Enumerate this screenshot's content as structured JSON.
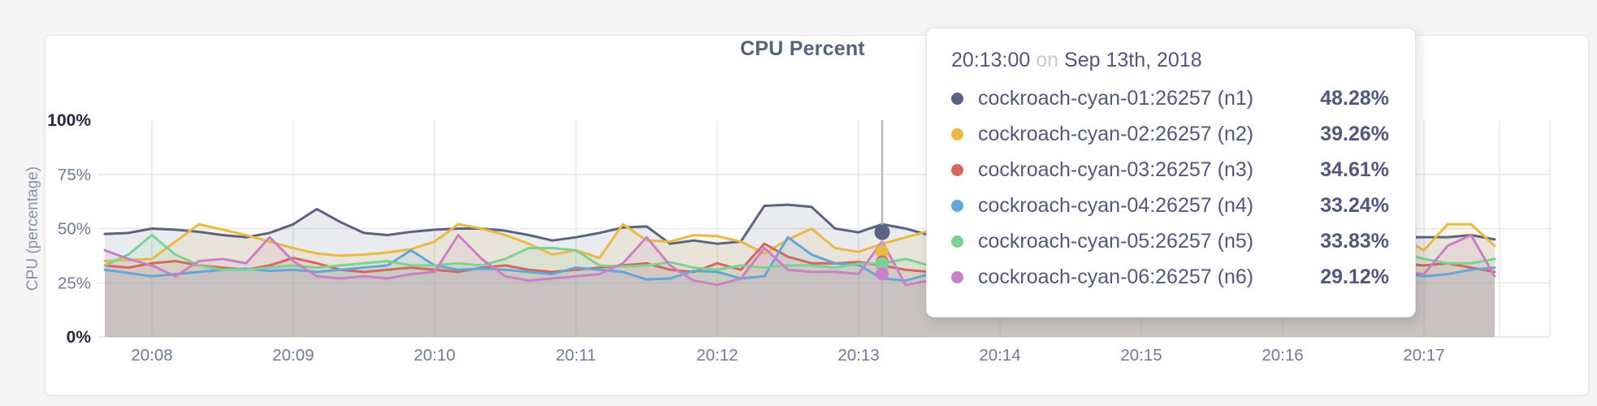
{
  "chart": {
    "title": "CPU Percent",
    "y_axis": {
      "label": "CPU (percentage)",
      "ticks": [
        {
          "label": "100%",
          "value": 100,
          "emphasis": true,
          "grid": false
        },
        {
          "label": "75%",
          "value": 75,
          "emphasis": false,
          "grid": true
        },
        {
          "label": "50%",
          "value": 50,
          "emphasis": false,
          "grid": true
        },
        {
          "label": "25%",
          "value": 25,
          "emphasis": false,
          "grid": true
        },
        {
          "label": "0%",
          "value": 0,
          "emphasis": true,
          "grid": false
        }
      ]
    },
    "x_axis": {
      "ticks": [
        "20:08",
        "20:09",
        "20:10",
        "20:11",
        "20:12",
        "20:13",
        "20:14",
        "20:15",
        "20:16",
        "20:17"
      ]
    }
  },
  "chart_data": {
    "type": "line",
    "title": "CPU Percent",
    "ylabel": "CPU (percentage)",
    "unit": "percent",
    "ylim": [
      0,
      100
    ],
    "grid": true,
    "x_start": "20:07:40",
    "x_end": "20:17:30",
    "x_step_seconds": 10,
    "series": [
      {
        "name": "cockroach-cyan-01:26257 (n1)",
        "color": "#5a6480",
        "values": [
          47.5,
          48,
          50,
          49.5,
          48.5,
          47,
          46,
          48,
          52,
          59,
          53,
          48,
          47,
          48.5,
          49.5,
          50,
          50,
          49,
          47,
          44.5,
          46,
          48,
          50.5,
          51,
          43,
          44.5,
          43,
          44,
          60.5,
          61,
          60,
          50,
          48.28,
          52,
          50,
          47,
          46,
          45,
          46,
          47,
          48,
          46,
          45,
          47,
          46,
          48,
          47,
          45,
          46,
          47,
          45,
          46,
          45,
          46,
          46.5,
          46,
          46,
          46,
          47,
          45
        ]
      },
      {
        "name": "cockroach-cyan-02:26257 (n2)",
        "color": "#eab943",
        "values": [
          35,
          35.5,
          36,
          44,
          52,
          49.5,
          47,
          44,
          41,
          38.5,
          37.5,
          38,
          39,
          40.5,
          44,
          52,
          50,
          47,
          43,
          38,
          40,
          36.5,
          52,
          44.5,
          44,
          47,
          46.5,
          44,
          38.5,
          45,
          50,
          41,
          39.26,
          43,
          46,
          49,
          47,
          44,
          42,
          45,
          48,
          46,
          43,
          41,
          44,
          47,
          49,
          46,
          43,
          40,
          42,
          44,
          46,
          44,
          47,
          46,
          40,
          52,
          52,
          42
        ]
      },
      {
        "name": "cockroach-cyan-03:26257 (n3)",
        "color": "#d4675f",
        "values": [
          33,
          32,
          34,
          35,
          33,
          32,
          31,
          33,
          36.5,
          34,
          31,
          30,
          31,
          32,
          31,
          30,
          32,
          33,
          31,
          30,
          31,
          32,
          33,
          34,
          31,
          30,
          34,
          31,
          43,
          37,
          34,
          34,
          34.61,
          33,
          31,
          30,
          32,
          34,
          36,
          31,
          30,
          32,
          33,
          31,
          30,
          31,
          32,
          33,
          31,
          30,
          32,
          31,
          33,
          32,
          31,
          34,
          33,
          34,
          32,
          30
        ]
      },
      {
        "name": "cockroach-cyan-04:26257 (n4)",
        "color": "#64a6d9",
        "values": [
          31,
          29.5,
          28,
          29,
          30,
          31,
          31.5,
          30.5,
          31,
          30,
          31,
          32,
          33,
          40,
          33,
          31,
          31.5,
          31,
          30,
          29,
          32,
          31,
          30,
          26.5,
          27,
          30.5,
          30,
          27,
          28,
          46,
          38,
          34,
          33.24,
          27,
          26,
          29,
          31,
          30,
          28,
          27,
          29,
          31,
          30,
          29,
          28,
          30,
          31,
          29,
          28,
          30,
          29,
          31,
          30,
          28,
          29,
          30,
          28,
          29,
          31,
          32
        ]
      },
      {
        "name": "cockroach-cyan-05:26257 (n5)",
        "color": "#7bd293",
        "values": [
          33,
          38,
          47,
          38,
          33,
          31,
          31,
          32,
          33,
          32,
          33,
          34,
          35,
          33,
          33,
          34,
          33,
          36,
          41,
          41,
          40,
          33,
          32.5,
          33,
          34.5,
          32,
          31,
          33,
          32,
          33,
          33,
          32,
          33.83,
          34,
          36,
          33,
          32,
          34,
          35,
          33,
          32,
          34,
          36,
          34,
          33,
          35,
          34,
          33,
          35,
          34,
          33,
          36,
          38,
          40,
          41,
          39,
          36,
          34,
          34,
          36
        ]
      },
      {
        "name": "cockroach-cyan-06:26257 (n6)",
        "color": "#ca80c5",
        "values": [
          40,
          36,
          33,
          28,
          35,
          36,
          34,
          46,
          35,
          28,
          27,
          28,
          27,
          29,
          30,
          47,
          36,
          28,
          26,
          27,
          28,
          29,
          34,
          46,
          33,
          26,
          24,
          27,
          41,
          31,
          30,
          30,
          29.12,
          44,
          24,
          26,
          28,
          25,
          27,
          29,
          26,
          28,
          30,
          27,
          25,
          28,
          30,
          26,
          28,
          27,
          29,
          26,
          28,
          30,
          28,
          30,
          29,
          42,
          47,
          28
        ]
      }
    ]
  },
  "tooltip": {
    "time": "20:13:00",
    "conjunction": "on",
    "date": "Sep 13th, 2018",
    "rows": [
      {
        "label": "cockroach-cyan-01:26257 (n1)",
        "value": "48.28%",
        "color": "#5a6480"
      },
      {
        "label": "cockroach-cyan-02:26257 (n2)",
        "value": "39.26%",
        "color": "#eab943"
      },
      {
        "label": "cockroach-cyan-03:26257 (n3)",
        "value": "34.61%",
        "color": "#d4675f"
      },
      {
        "label": "cockroach-cyan-04:26257 (n4)",
        "value": "33.24%",
        "color": "#64a6d9"
      },
      {
        "label": "cockroach-cyan-05:26257 (n5)",
        "value": "33.83%",
        "color": "#7bd293"
      },
      {
        "label": "cockroach-cyan-06:26257 (n6)",
        "value": "29.12%",
        "color": "#ca80c5"
      }
    ]
  },
  "colors": {
    "title_text": "#56617c",
    "tooltip_text": "#51597a",
    "tooltip_muted": "#c6cad1",
    "axis_tick": "#6f7c98",
    "axis_tick_emphasis": "#242b38",
    "gridline": "#e7e7e5",
    "hover_line": "#b9b9b9"
  }
}
